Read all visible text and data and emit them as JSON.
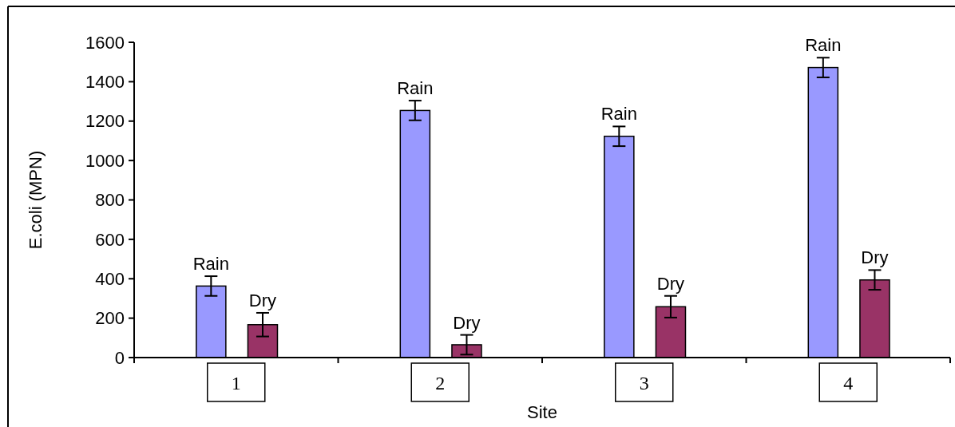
{
  "chart_data": {
    "type": "bar",
    "xlabel": "Site",
    "ylabel": "E.coli (MPN)",
    "categories": [
      "1",
      "2",
      "3",
      "4"
    ],
    "series": [
      {
        "name": "Rain",
        "color": "#9999ff",
        "values": [
          363,
          1254,
          1123,
          1472
        ],
        "errors": [
          50,
          50,
          50,
          50
        ]
      },
      {
        "name": "Dry",
        "color": "#993366",
        "values": [
          167,
          65,
          258,
          394
        ],
        "errors": [
          60,
          50,
          55,
          50
        ]
      }
    ],
    "ylim": [
      0,
      1600
    ],
    "yticks": [
      0,
      200,
      400,
      600,
      800,
      1000,
      1200,
      1400,
      1600
    ],
    "grid": false
  }
}
